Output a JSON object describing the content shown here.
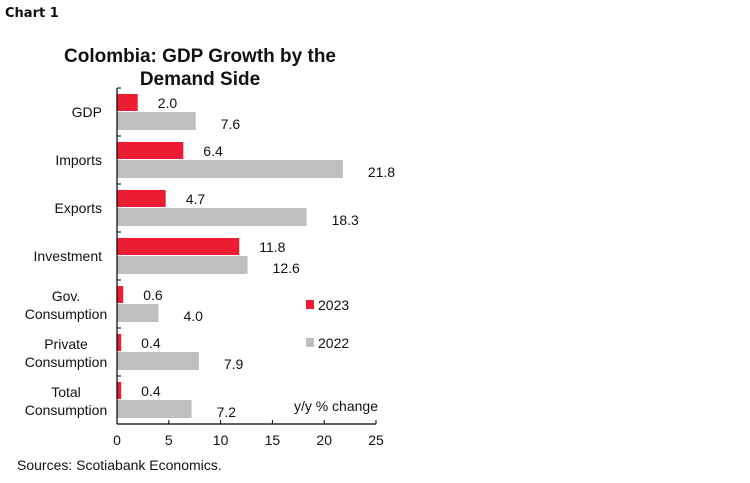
{
  "header": {
    "chart_label": "Chart 1"
  },
  "chart_data": {
    "type": "bar",
    "orientation": "horizontal",
    "title": "Colombia: GDP Growth by the Demand Side",
    "title_lines": [
      "Colombia: GDP Growth by the",
      "Demand Side"
    ],
    "categories": [
      [
        "GDP"
      ],
      [
        "Imports"
      ],
      [
        "Exports"
      ],
      [
        "Investment"
      ],
      [
        "Gov.",
        "Consumption"
      ],
      [
        "Private",
        "Consumption"
      ],
      [
        "Total",
        "Consumption"
      ]
    ],
    "series": [
      {
        "name": "2023",
        "color": "#ee1c33",
        "values": [
          2.0,
          6.4,
          4.7,
          11.8,
          0.6,
          0.4,
          0.4
        ]
      },
      {
        "name": "2022",
        "color": "#bfbfbf",
        "values": [
          7.6,
          21.8,
          18.3,
          12.6,
          4.0,
          7.9,
          7.2
        ]
      }
    ],
    "xlim": [
      0,
      25
    ],
    "xticks": [
      0,
      5,
      10,
      15,
      20,
      25
    ],
    "unit_label": "y/y  % change",
    "legend_placement": "right",
    "grid": false,
    "source": "Sources:  Scotiabank Economics."
  }
}
